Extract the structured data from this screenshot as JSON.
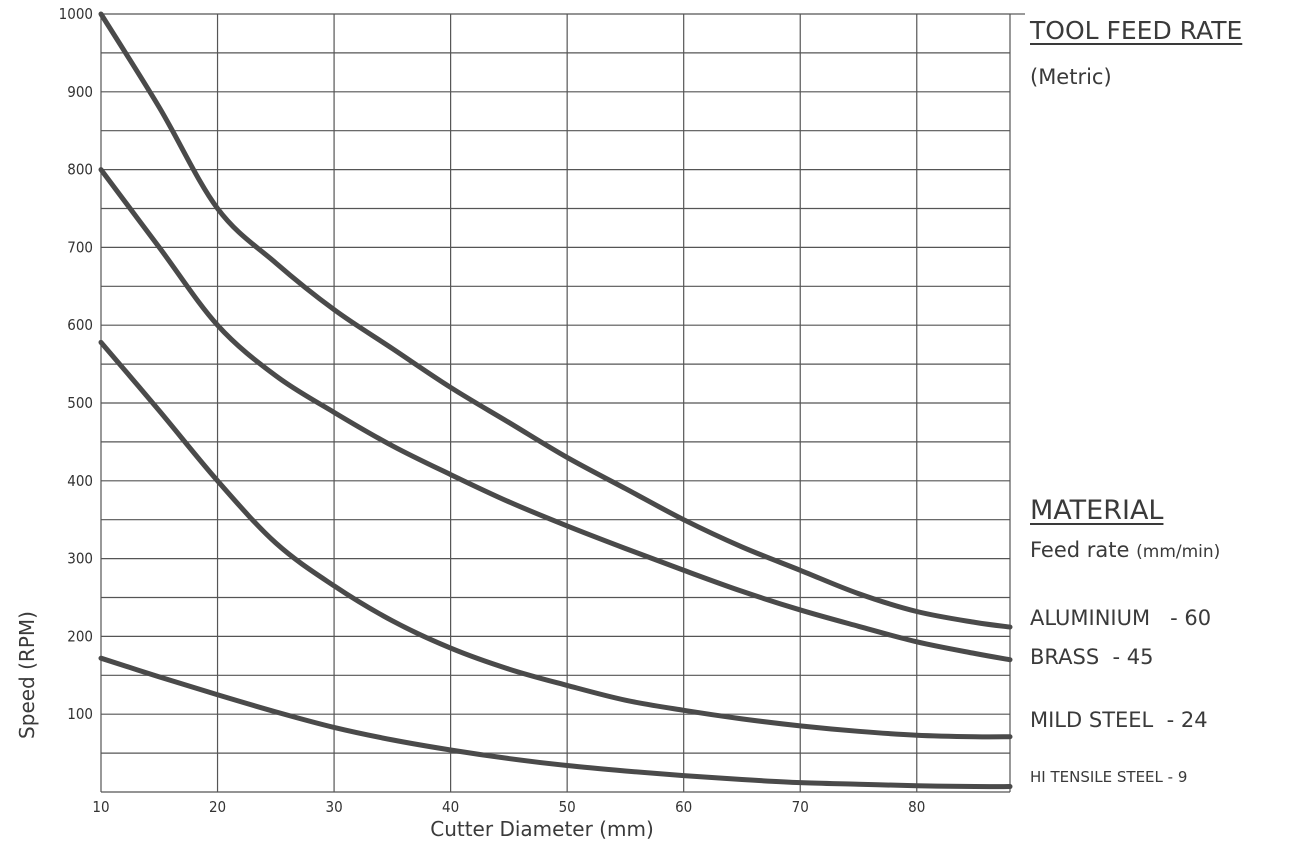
{
  "chart_data": {
    "type": "line",
    "title": "TOOL FEED RATE",
    "subtitle": "(Metric)",
    "xlabel": "Cutter Diameter (mm)",
    "ylabel": "Speed (RPM)",
    "xlim": [
      10,
      88
    ],
    "ylim": [
      0,
      1000
    ],
    "xticks": [
      "10",
      "20",
      "30",
      "40",
      "50",
      "60",
      "70",
      "80"
    ],
    "yticks": [
      "100",
      "200",
      "300",
      "400",
      "500",
      "600",
      "700",
      "800",
      "900",
      "1000"
    ],
    "grid": true,
    "line_color": "#4a4a4a",
    "legend": {
      "title": "MATERIAL",
      "subtitle": "Feed rate",
      "unit": "(mm/min)"
    },
    "series": [
      {
        "name": "ALUMINIUM",
        "label": "ALUMINIUM   - 60",
        "x": [
          10,
          15,
          20,
          25,
          30,
          35,
          40,
          45,
          50,
          55,
          60,
          65,
          70,
          75,
          80,
          85,
          88
        ],
        "y": [
          1000,
          880,
          750,
          680,
          620,
          570,
          520,
          475,
          430,
          390,
          350,
          315,
          285,
          255,
          232,
          218,
          212
        ]
      },
      {
        "name": "BRASS",
        "label": "BRASS  - 45",
        "x": [
          10,
          15,
          20,
          25,
          30,
          35,
          40,
          45,
          50,
          55,
          60,
          65,
          70,
          75,
          80,
          85,
          88
        ],
        "y": [
          800,
          700,
          600,
          535,
          488,
          445,
          408,
          373,
          342,
          313,
          285,
          258,
          234,
          213,
          193,
          178,
          170
        ]
      },
      {
        "name": "MILD STEEL",
        "label": "MILD STEEL  - 24",
        "x": [
          10,
          15,
          20,
          25,
          30,
          35,
          40,
          45,
          50,
          55,
          60,
          65,
          70,
          75,
          80,
          85,
          88
        ],
        "y": [
          578,
          490,
          400,
          320,
          265,
          220,
          185,
          158,
          137,
          118,
          105,
          94,
          85,
          78,
          73,
          71,
          71
        ]
      },
      {
        "name": "HI TENSILE STEEL",
        "label": "HI TENSILE STEEL - 9",
        "x": [
          10,
          15,
          20,
          25,
          30,
          35,
          40,
          45,
          50,
          55,
          60,
          65,
          70,
          75,
          80,
          85,
          88
        ],
        "y": [
          172,
          148,
          125,
          103,
          83,
          67,
          54,
          43,
          34,
          27,
          21,
          16,
          12,
          10,
          8,
          7,
          7
        ]
      }
    ]
  }
}
